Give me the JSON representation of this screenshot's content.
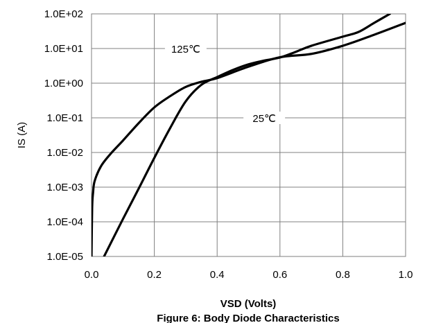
{
  "chart_data": {
    "type": "line",
    "title": "Figure 6: Body Diode Characteristics",
    "xlabel": "VSD (Volts)",
    "ylabel": "IS (A)",
    "xlim": [
      0.0,
      1.0
    ],
    "ylim": [
      1e-05,
      100
    ],
    "y_scale": "log",
    "grid": true,
    "x_ticks": [
      "0.0",
      "0.2",
      "0.4",
      "0.6",
      "0.8",
      "1.0"
    ],
    "y_ticks": [
      "1.0E-05",
      "1.0E-04",
      "1.0E-03",
      "1.0E-02",
      "1.0E-01",
      "1.0E+00",
      "1.0E+01",
      "1.0E+02"
    ],
    "series": [
      {
        "name": "125℃",
        "x": [
          0.0,
          0.002,
          0.005,
          0.01,
          0.03,
          0.06,
          0.1,
          0.15,
          0.2,
          0.25,
          0.3,
          0.35,
          0.4,
          0.5,
          0.6,
          0.7,
          0.8,
          0.9,
          1.0
        ],
        "y": [
          1e-05,
          0.00025,
          0.0007,
          0.0015,
          0.004,
          0.009,
          0.022,
          0.07,
          0.2,
          0.42,
          0.78,
          1.1,
          1.4,
          3.0,
          5.6,
          7.0,
          12.0,
          25.0,
          55.0
        ]
      },
      {
        "name": "25℃",
        "x": [
          0.04,
          0.1,
          0.15,
          0.2,
          0.25,
          0.3,
          0.35,
          0.4,
          0.45,
          0.5,
          0.55,
          0.6,
          0.65,
          0.7,
          0.8,
          0.85,
          0.9,
          0.95
        ],
        "y": [
          1e-05,
          0.00012,
          0.0009,
          0.007,
          0.05,
          0.3,
          0.9,
          1.5,
          2.4,
          3.5,
          4.5,
          5.5,
          8.0,
          12.0,
          22.0,
          30.0,
          55.0,
          100.0
        ]
      }
    ],
    "annotations": [
      {
        "text": "125℃",
        "x": 0.3,
        "y": 10
      },
      {
        "text": "25℃",
        "x": 0.55,
        "y": 0.1
      }
    ]
  }
}
